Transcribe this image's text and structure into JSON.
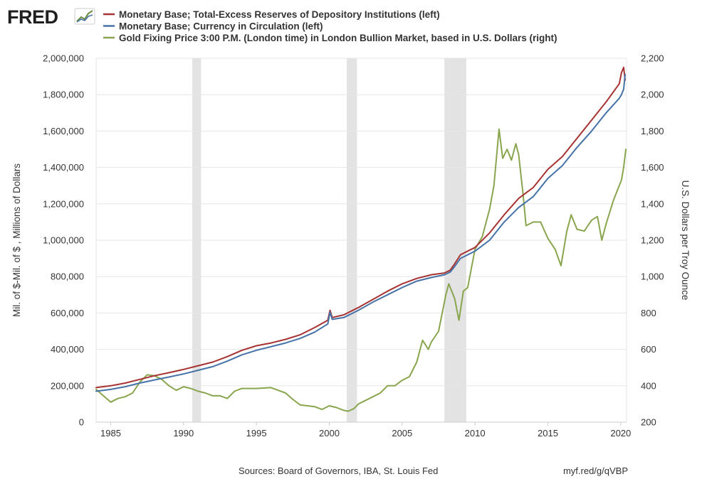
{
  "logo": {
    "text": "FRED"
  },
  "footer": {
    "sources": "Sources: Board of Governors, IBA, St. Louis Fed",
    "url": "myf.red/g/qVBP"
  },
  "chart_data": {
    "type": "line",
    "legend_placement": "top-left",
    "grid": true,
    "x_axis": {
      "range": [
        1984.0,
        2020.4
      ],
      "ticks": [
        1985,
        1990,
        1995,
        2000,
        2005,
        2010,
        2015,
        2020
      ],
      "tick_labels": [
        "1985",
        "1990",
        "1995",
        "2000",
        "2005",
        "2010",
        "2015",
        "2020"
      ]
    },
    "y_left": {
      "label": "Mil. of $-Mil. of $ , Millions of Dollars",
      "range": [
        0,
        2000000
      ],
      "ticks": [
        0,
        200000,
        400000,
        600000,
        800000,
        1000000,
        1200000,
        1400000,
        1600000,
        1800000,
        2000000
      ],
      "tick_labels": [
        "0",
        "200,000",
        "400,000",
        "600,000",
        "800,000",
        "1,000,000",
        "1,200,000",
        "1,400,000",
        "1,600,000",
        "1,800,000",
        "2,000,000"
      ]
    },
    "y_right": {
      "label": "U.S. Dollars per Troy Ounce",
      "range": [
        200,
        2200
      ],
      "ticks": [
        200,
        400,
        600,
        800,
        1000,
        1200,
        1400,
        1600,
        1800,
        2000,
        2200
      ],
      "tick_labels": [
        "200",
        "400",
        "600",
        "800",
        "1,000",
        "1,200",
        "1,400",
        "1,600",
        "1,800",
        "2,000",
        "2,200"
      ]
    },
    "recessions": [
      [
        1990.6,
        1991.2
      ],
      [
        2001.2,
        2001.9
      ],
      [
        2007.9,
        2009.4
      ]
    ],
    "series": [
      {
        "name": "Monetary Base; Total-Excess Reserves of Depository Institutions (left)",
        "axis": "left",
        "color": "#a63232",
        "x": [
          1984.0,
          1985,
          1986,
          1987,
          1988,
          1989,
          1990,
          1991,
          1992,
          1993,
          1994,
          1995,
          1996,
          1997,
          1998,
          1999,
          1999.9,
          2000.05,
          2000.2,
          2001,
          2002,
          2003,
          2004,
          2005,
          2006,
          2007,
          2007.9,
          2008.3,
          2008.6,
          2009,
          2010,
          2011,
          2012,
          2013,
          2014,
          2015,
          2016,
          2017,
          2018,
          2019,
          2019.9,
          2020.05,
          2020.2,
          2020.3
        ],
        "y": [
          190000,
          200000,
          215000,
          235000,
          255000,
          272000,
          290000,
          310000,
          330000,
          360000,
          395000,
          420000,
          435000,
          455000,
          480000,
          520000,
          560000,
          615000,
          575000,
          590000,
          630000,
          675000,
          720000,
          760000,
          790000,
          810000,
          820000,
          835000,
          870000,
          920000,
          960000,
          1040000,
          1140000,
          1230000,
          1290000,
          1390000,
          1460000,
          1560000,
          1660000,
          1760000,
          1860000,
          1920000,
          1950000,
          1880000
        ]
      },
      {
        "name": "Monetary Base; Currency in Circulation (left)",
        "axis": "left",
        "color": "#4572a7",
        "x": [
          1984.0,
          1985,
          1986,
          1987,
          1988,
          1989,
          1990,
          1991,
          1992,
          1993,
          1994,
          1995,
          1996,
          1997,
          1998,
          1999,
          1999.9,
          2000.05,
          2000.2,
          2001,
          2002,
          2003,
          2004,
          2005,
          2006,
          2007,
          2007.9,
          2008.3,
          2008.6,
          2009,
          2010,
          2011,
          2012,
          2013,
          2014,
          2015,
          2016,
          2017,
          2018,
          2019,
          2019.9,
          2020.05,
          2020.2,
          2020.3
        ],
        "y": [
          170000,
          180000,
          195000,
          215000,
          232000,
          248000,
          265000,
          285000,
          305000,
          335000,
          370000,
          395000,
          415000,
          435000,
          460000,
          495000,
          540000,
          605000,
          565000,
          575000,
          615000,
          660000,
          700000,
          740000,
          775000,
          795000,
          810000,
          825000,
          855000,
          900000,
          940000,
          1000000,
          1100000,
          1180000,
          1240000,
          1340000,
          1410000,
          1510000,
          1600000,
          1700000,
          1780000,
          1800000,
          1830000,
          1910000
        ]
      },
      {
        "name": "Gold Fixing Price 3:00 P.M. (London time) in London Bullion Market, based in U.S. Dollars (right)",
        "axis": "right",
        "color": "#89a54e",
        "x": [
          1984.0,
          1984.5,
          1985.0,
          1985.5,
          1986,
          1986.5,
          1987,
          1987.5,
          1988,
          1988.5,
          1989,
          1989.5,
          1990,
          1990.5,
          1991,
          1991.5,
          1992,
          1992.5,
          1993,
          1993.5,
          1994,
          1995,
          1996,
          1996.5,
          1997,
          1997.5,
          1998,
          1998.5,
          1999,
          1999.5,
          2000,
          2000.5,
          2001,
          2001.3,
          2001.7,
          2002,
          2002.5,
          2003,
          2003.5,
          2004,
          2004.5,
          2005,
          2005.5,
          2006,
          2006.4,
          2006.8,
          2007,
          2007.5,
          2008.0,
          2008.2,
          2008.6,
          2008.9,
          2009.2,
          2009.5,
          2010,
          2010.5,
          2011.0,
          2011.3,
          2011.65,
          2011.9,
          2012.2,
          2012.5,
          2012.8,
          2013.0,
          2013.3,
          2013.5,
          2014,
          2014.5,
          2015,
          2015.5,
          2015.9,
          2016.3,
          2016.6,
          2017,
          2017.5,
          2018,
          2018.4,
          2018.7,
          2019,
          2019.5,
          2019.8,
          2020.05,
          2020.2,
          2020.35
        ],
        "y": [
          380,
          345,
          310,
          330,
          340,
          360,
          420,
          460,
          455,
          435,
          400,
          375,
          395,
          385,
          370,
          360,
          345,
          345,
          330,
          370,
          385,
          385,
          390,
          375,
          360,
          325,
          295,
          290,
          285,
          270,
          290,
          280,
          265,
          260,
          275,
          300,
          320,
          340,
          360,
          400,
          400,
          430,
          450,
          530,
          650,
          600,
          640,
          700,
          900,
          960,
          880,
          760,
          920,
          940,
          1150,
          1220,
          1370,
          1500,
          1810,
          1650,
          1700,
          1640,
          1730,
          1670,
          1450,
          1280,
          1300,
          1300,
          1210,
          1150,
          1060,
          1250,
          1340,
          1260,
          1250,
          1310,
          1330,
          1200,
          1290,
          1420,
          1480,
          1530,
          1600,
          1700
        ]
      }
    ]
  }
}
